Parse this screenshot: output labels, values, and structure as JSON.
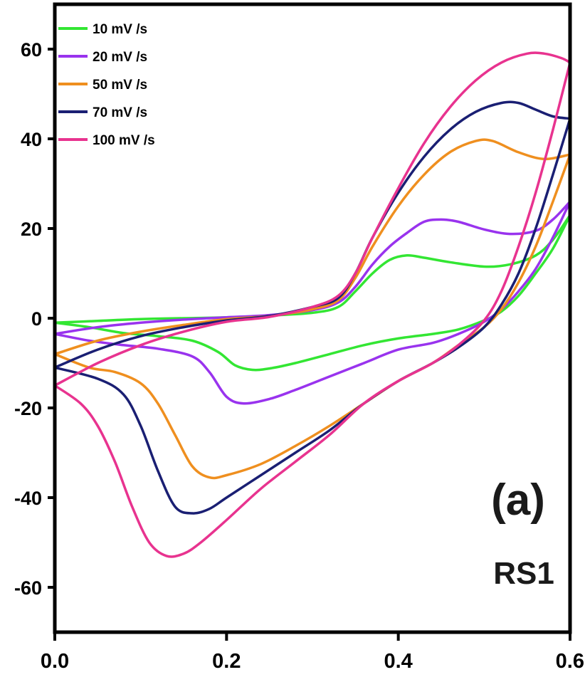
{
  "chart_data": {
    "type": "line",
    "title": "",
    "xlabel": "",
    "ylabel": "",
    "xlim": [
      0.0,
      0.6
    ],
    "ylim": [
      -70,
      70
    ],
    "x_ticks": [
      "0.0",
      "0.2",
      "0.4",
      "0.6"
    ],
    "y_ticks": [
      "-60",
      "-40",
      "-20",
      "0",
      "20",
      "40",
      "60"
    ],
    "grid": false,
    "legend_position": "top-left",
    "annotations": [
      "(a)",
      "RS1"
    ],
    "series": [
      {
        "name": "10 mV /s",
        "color": "#33e633",
        "anodic": [
          [
            0.0,
            -1.0
          ],
          [
            0.05,
            -0.6
          ],
          [
            0.1,
            -0.2
          ],
          [
            0.15,
            0.0
          ],
          [
            0.2,
            0.2
          ],
          [
            0.25,
            0.6
          ],
          [
            0.3,
            1.2
          ],
          [
            0.33,
            2.5
          ],
          [
            0.35,
            6
          ],
          [
            0.37,
            10
          ],
          [
            0.39,
            13
          ],
          [
            0.41,
            14
          ],
          [
            0.43,
            13.5
          ],
          [
            0.46,
            12.5
          ],
          [
            0.5,
            11.5
          ],
          [
            0.53,
            12
          ],
          [
            0.56,
            14
          ],
          [
            0.58,
            17.5
          ],
          [
            0.6,
            23
          ]
        ],
        "cathodic": [
          [
            0.6,
            23
          ],
          [
            0.58,
            15.5
          ],
          [
            0.56,
            10
          ],
          [
            0.54,
            5
          ],
          [
            0.52,
            1.5
          ],
          [
            0.5,
            -0.5
          ],
          [
            0.47,
            -2.5
          ],
          [
            0.44,
            -3.5
          ],
          [
            0.4,
            -4.5
          ],
          [
            0.36,
            -6
          ],
          [
            0.32,
            -8
          ],
          [
            0.28,
            -10
          ],
          [
            0.25,
            -11.2
          ],
          [
            0.23,
            -11.5
          ],
          [
            0.21,
            -10.5
          ],
          [
            0.19,
            -7.5
          ],
          [
            0.16,
            -5
          ],
          [
            0.12,
            -4
          ],
          [
            0.08,
            -3.3
          ],
          [
            0.04,
            -2
          ],
          [
            0.0,
            -1.0
          ]
        ]
      },
      {
        "name": "20 mV /s",
        "color": "#9933ee",
        "anodic": [
          [
            0.0,
            -3.5
          ],
          [
            0.05,
            -2
          ],
          [
            0.1,
            -1
          ],
          [
            0.15,
            -0.3
          ],
          [
            0.2,
            0.2
          ],
          [
            0.25,
            0.7
          ],
          [
            0.3,
            1.8
          ],
          [
            0.33,
            3.5
          ],
          [
            0.35,
            7
          ],
          [
            0.37,
            12
          ],
          [
            0.39,
            16
          ],
          [
            0.41,
            19
          ],
          [
            0.43,
            21.5
          ],
          [
            0.45,
            22
          ],
          [
            0.47,
            21.5
          ],
          [
            0.5,
            19.8
          ],
          [
            0.53,
            18.8
          ],
          [
            0.56,
            19.5
          ],
          [
            0.58,
            22
          ],
          [
            0.6,
            26
          ]
        ],
        "cathodic": [
          [
            0.6,
            26
          ],
          [
            0.58,
            18
          ],
          [
            0.56,
            11
          ],
          [
            0.54,
            6
          ],
          [
            0.52,
            2
          ],
          [
            0.5,
            -0.8
          ],
          [
            0.47,
            -3.5
          ],
          [
            0.44,
            -5.5
          ],
          [
            0.4,
            -7
          ],
          [
            0.36,
            -10
          ],
          [
            0.32,
            -13
          ],
          [
            0.28,
            -16
          ],
          [
            0.25,
            -18
          ],
          [
            0.22,
            -19
          ],
          [
            0.2,
            -17.5
          ],
          [
            0.18,
            -12
          ],
          [
            0.16,
            -8.5
          ],
          [
            0.12,
            -6.8
          ],
          [
            0.08,
            -6
          ],
          [
            0.04,
            -5
          ],
          [
            0.0,
            -3.5
          ]
        ]
      },
      {
        "name": "50 mV /s",
        "color": "#ef8f1f",
        "anodic": [
          [
            0.0,
            -8
          ],
          [
            0.05,
            -5
          ],
          [
            0.1,
            -3
          ],
          [
            0.15,
            -1.5
          ],
          [
            0.2,
            -0.2
          ],
          [
            0.25,
            0.5
          ],
          [
            0.3,
            2
          ],
          [
            0.33,
            4
          ],
          [
            0.35,
            9
          ],
          [
            0.37,
            16
          ],
          [
            0.4,
            25
          ],
          [
            0.43,
            32
          ],
          [
            0.46,
            37
          ],
          [
            0.49,
            39.5
          ],
          [
            0.51,
            39.5
          ],
          [
            0.54,
            37
          ],
          [
            0.57,
            35.5
          ],
          [
            0.6,
            36.5
          ]
        ],
        "cathodic": [
          [
            0.6,
            36.5
          ],
          [
            0.58,
            26
          ],
          [
            0.56,
            16
          ],
          [
            0.54,
            8
          ],
          [
            0.52,
            2
          ],
          [
            0.5,
            -2
          ],
          [
            0.47,
            -6
          ],
          [
            0.44,
            -10
          ],
          [
            0.4,
            -14
          ],
          [
            0.36,
            -19
          ],
          [
            0.32,
            -24
          ],
          [
            0.28,
            -28.5
          ],
          [
            0.24,
            -32.5
          ],
          [
            0.2,
            -35
          ],
          [
            0.18,
            -35.5
          ],
          [
            0.16,
            -33
          ],
          [
            0.14,
            -26
          ],
          [
            0.12,
            -19
          ],
          [
            0.1,
            -14.5
          ],
          [
            0.07,
            -12
          ],
          [
            0.04,
            -11
          ],
          [
            0.0,
            -8
          ]
        ]
      },
      {
        "name": "70 mV /s",
        "color": "#1a1f73",
        "anodic": [
          [
            0.0,
            -11
          ],
          [
            0.05,
            -7
          ],
          [
            0.1,
            -4
          ],
          [
            0.15,
            -2
          ],
          [
            0.2,
            -0.5
          ],
          [
            0.25,
            0.5
          ],
          [
            0.3,
            2.5
          ],
          [
            0.33,
            4.5
          ],
          [
            0.35,
            10
          ],
          [
            0.37,
            18
          ],
          [
            0.4,
            28
          ],
          [
            0.43,
            36
          ],
          [
            0.46,
            42
          ],
          [
            0.49,
            46
          ],
          [
            0.52,
            48
          ],
          [
            0.54,
            48
          ],
          [
            0.56,
            46.5
          ],
          [
            0.58,
            45
          ],
          [
            0.6,
            44.5
          ]
        ],
        "cathodic": [
          [
            0.6,
            44.5
          ],
          [
            0.58,
            32
          ],
          [
            0.56,
            20
          ],
          [
            0.54,
            10
          ],
          [
            0.52,
            3
          ],
          [
            0.5,
            -2
          ],
          [
            0.47,
            -6.5
          ],
          [
            0.44,
            -10
          ],
          [
            0.4,
            -14
          ],
          [
            0.36,
            -19
          ],
          [
            0.32,
            -25
          ],
          [
            0.28,
            -30
          ],
          [
            0.24,
            -35
          ],
          [
            0.2,
            -40
          ],
          [
            0.18,
            -42.5
          ],
          [
            0.16,
            -43.5
          ],
          [
            0.14,
            -42
          ],
          [
            0.12,
            -34
          ],
          [
            0.1,
            -24
          ],
          [
            0.08,
            -17
          ],
          [
            0.05,
            -13.5
          ],
          [
            0.0,
            -11
          ]
        ]
      },
      {
        "name": "100 mV /s",
        "color": "#e8338f",
        "anodic": [
          [
            0.0,
            -15
          ],
          [
            0.05,
            -10
          ],
          [
            0.1,
            -6
          ],
          [
            0.15,
            -3
          ],
          [
            0.2,
            -0.8
          ],
          [
            0.25,
            0.3
          ],
          [
            0.3,
            2.5
          ],
          [
            0.33,
            5
          ],
          [
            0.35,
            10
          ],
          [
            0.37,
            18
          ],
          [
            0.4,
            29
          ],
          [
            0.43,
            39
          ],
          [
            0.46,
            47
          ],
          [
            0.49,
            53
          ],
          [
            0.52,
            57
          ],
          [
            0.55,
            59
          ],
          [
            0.57,
            59
          ],
          [
            0.59,
            58
          ],
          [
            0.6,
            57
          ]
        ],
        "cathodic": [
          [
            0.6,
            57
          ],
          [
            0.58,
            42
          ],
          [
            0.56,
            28
          ],
          [
            0.54,
            16
          ],
          [
            0.52,
            6
          ],
          [
            0.5,
            -0.5
          ],
          [
            0.47,
            -6
          ],
          [
            0.44,
            -10
          ],
          [
            0.4,
            -14
          ],
          [
            0.36,
            -19
          ],
          [
            0.32,
            -26
          ],
          [
            0.28,
            -32
          ],
          [
            0.24,
            -38
          ],
          [
            0.2,
            -45
          ],
          [
            0.17,
            -50
          ],
          [
            0.15,
            -52.5
          ],
          [
            0.13,
            -53
          ],
          [
            0.11,
            -50
          ],
          [
            0.09,
            -42
          ],
          [
            0.07,
            -32
          ],
          [
            0.05,
            -24
          ],
          [
            0.03,
            -19
          ],
          [
            0.0,
            -15
          ]
        ]
      }
    ]
  }
}
